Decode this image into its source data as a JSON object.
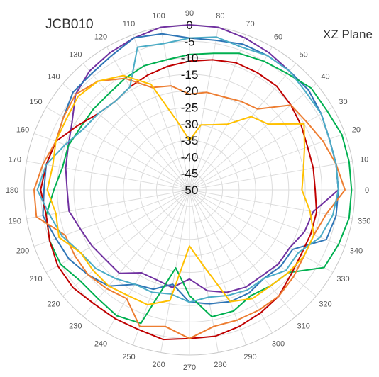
{
  "chart_data": {
    "type": "radar",
    "title_left": "JCB010",
    "title_right": "XZ Plane",
    "radial_ticks": [
      0,
      -5,
      -10,
      -15,
      -20,
      -25,
      -30,
      -35,
      -40,
      -45,
      -50
    ],
    "rlim": [
      -50,
      0
    ],
    "angle_ticks": [
      0,
      10,
      20,
      30,
      40,
      50,
      60,
      70,
      80,
      90,
      100,
      110,
      120,
      130,
      140,
      150,
      160,
      170,
      180,
      190,
      200,
      210,
      220,
      230,
      240,
      250,
      260,
      270,
      280,
      290,
      300,
      310,
      320,
      330,
      340,
      350
    ],
    "grid": true,
    "series": [
      {
        "color": "#7030a0",
        "angles": [
          0,
          10,
          20,
          30,
          40,
          50,
          60,
          70,
          80,
          90,
          100,
          110,
          120,
          130,
          140,
          150,
          160,
          170,
          180,
          190,
          200,
          210,
          220,
          230,
          240,
          250,
          260,
          270,
          280,
          290,
          300,
          310,
          320,
          330,
          340,
          350
        ],
        "values": [
          -5,
          -5,
          -5,
          -4,
          -3,
          -3,
          -2,
          -1,
          0,
          0,
          0,
          -1,
          -2,
          -3,
          -5,
          -9,
          -11,
          -12,
          -13,
          -13,
          -15,
          -16,
          -17,
          -17,
          -21,
          -21,
          -20,
          -23,
          -19,
          -17,
          -16,
          -16,
          -15,
          -15,
          -13,
          -12
        ]
      },
      {
        "color": "#2e75b6",
        "angles": [
          0,
          10,
          20,
          30,
          40,
          50,
          60,
          70,
          80,
          90,
          100,
          110,
          120,
          130,
          140,
          150,
          160,
          170,
          180,
          190,
          200,
          210,
          220,
          230,
          240,
          250,
          260,
          270,
          280,
          290,
          300,
          310,
          320,
          330,
          340,
          350
        ],
        "values": [
          -5,
          -5,
          -5,
          -4,
          -3,
          -3,
          -3,
          -3,
          -4,
          -4,
          -2,
          -1,
          -3,
          -4,
          -4,
          -6,
          -7,
          -6,
          -6,
          -5,
          -7,
          -8,
          -10,
          -12,
          -17,
          -18,
          -21,
          -16,
          -15,
          -14,
          -14,
          -15,
          -14,
          -14,
          -6,
          -5
        ]
      },
      {
        "color": "#00b050",
        "angles": [
          0,
          10,
          20,
          30,
          40,
          50,
          60,
          70,
          80,
          90,
          100,
          110,
          120,
          130,
          140,
          150,
          160,
          170,
          180,
          190,
          200,
          210,
          220,
          230,
          240,
          250,
          260,
          270,
          280,
          290,
          300,
          310,
          320,
          330,
          340,
          350
        ],
        "values": [
          -1,
          -1,
          -1,
          -2,
          -2,
          -4,
          -5,
          -6,
          -8,
          -9,
          -10,
          -10,
          -11,
          -12,
          -12,
          -12,
          -11,
          -11,
          -9,
          -6,
          -5,
          -5,
          -7,
          -7,
          -6,
          -7,
          -26,
          -18,
          -11,
          -11,
          -13,
          -12,
          -11,
          -3,
          -2,
          -1
        ]
      },
      {
        "color": "#c00000",
        "angles": [
          0,
          10,
          20,
          30,
          40,
          50,
          60,
          70,
          80,
          90,
          100,
          110,
          120,
          130,
          140,
          150,
          160,
          170,
          180,
          190,
          200,
          210,
          220,
          230,
          240,
          250,
          260,
          270,
          280,
          290,
          300,
          310,
          320,
          330,
          340,
          350
        ],
        "values": [
          -12,
          -12,
          -12,
          -11,
          -10,
          -9,
          -9,
          -9,
          -10,
          -11,
          -12,
          -13,
          -14,
          -15,
          -14,
          -11,
          -7,
          -6,
          -5,
          -6,
          -5,
          -4,
          -4,
          -5,
          -5,
          -5,
          -4,
          -5,
          -5,
          -6,
          -7,
          -8,
          -10,
          -11,
          -11,
          -11
        ]
      },
      {
        "color": "#ed7d31",
        "angles": [
          0,
          10,
          20,
          30,
          40,
          50,
          60,
          70,
          80,
          90,
          100,
          110,
          120,
          130,
          140,
          150,
          160,
          170,
          180,
          190,
          200,
          210,
          220,
          230,
          240,
          250,
          260,
          270,
          280,
          290,
          300,
          310,
          320,
          330,
          340,
          350
        ],
        "values": [
          -3,
          -5,
          -7,
          -9,
          -10,
          -18,
          -19,
          -20,
          -20,
          -21,
          -18,
          -17,
          -11,
          -7,
          -5,
          -6,
          -7,
          -5,
          -3,
          -3,
          -10,
          -10,
          -10,
          -11,
          -12,
          -6,
          -8,
          -5,
          -8,
          -8,
          -8,
          -8,
          -9,
          -10,
          -10,
          -8
        ]
      },
      {
        "color": "#4bacc6",
        "angles": [
          0,
          10,
          20,
          30,
          40,
          50,
          60,
          70,
          80,
          90,
          100,
          110,
          120,
          130,
          140,
          150,
          160,
          170,
          180,
          190,
          200,
          210,
          220,
          230,
          240,
          250,
          260,
          270,
          280,
          290,
          300,
          310,
          320,
          330,
          340,
          350
        ],
        "values": [
          -5,
          -5,
          -5,
          -4,
          -4,
          -3,
          -3,
          -4,
          -3,
          -4,
          -5,
          -4,
          -14,
          -15,
          -14,
          -13,
          -10,
          -6,
          -4,
          -7,
          -9,
          -12,
          -13,
          -15,
          -17,
          -17,
          -18,
          -16,
          -17,
          -16,
          -15,
          -15,
          -12,
          -12,
          -8,
          -6
        ]
      },
      {
        "color": "#ffc000",
        "angles": [
          0,
          10,
          20,
          30,
          40,
          50,
          60,
          70,
          80,
          90,
          100,
          110,
          120,
          130,
          140,
          150,
          160,
          170,
          180,
          190,
          200,
          210,
          220,
          230,
          240,
          250,
          260,
          270,
          280,
          290,
          300,
          310,
          320,
          330,
          340,
          350
        ],
        "values": [
          -16,
          -15,
          -13,
          -10,
          -19,
          -21,
          -27,
          -29,
          -30,
          -35,
          -29,
          -16,
          -10,
          -7,
          -6,
          -7,
          -7,
          -8,
          -7,
          -9,
          -8,
          -12,
          -12,
          -12,
          -13,
          -13,
          -16,
          -33,
          -27,
          -14,
          -12,
          -12,
          -11,
          -10,
          -10,
          -13
        ]
      }
    ]
  }
}
